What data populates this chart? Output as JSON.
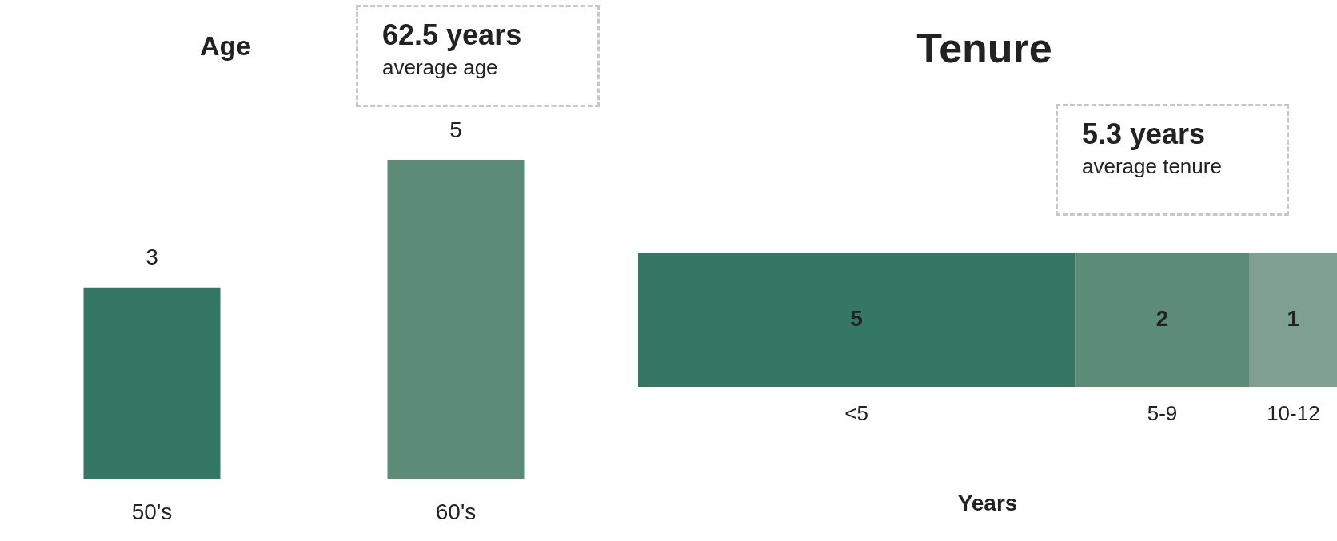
{
  "chart_data": [
    {
      "type": "bar",
      "title": "Age",
      "categories": [
        "50's",
        "60's"
      ],
      "values": [
        3,
        5
      ],
      "colors": [
        "#347864",
        "#5c8b78"
      ],
      "data_labels": true,
      "tick_labels": "x",
      "annotations": [
        "62.5 years",
        "average age"
      ]
    },
    {
      "type": "bar",
      "title": "Tenure",
      "orientation": "horizontal",
      "stacked": true,
      "categories": [
        null
      ],
      "xlabel": "Years",
      "data_labels": true,
      "tick_labels": false,
      "annotations": [
        "5.3 years",
        "average tenure"
      ],
      "series": [
        {
          "name": "<5",
          "color": "#347864",
          "values": [
            5
          ]
        },
        {
          "name": "5-9",
          "color": "#5c8b78",
          "values": [
            2
          ]
        },
        {
          "name": "10-12",
          "color": "#7fa090",
          "values": [
            1
          ]
        }
      ]
    }
  ]
}
